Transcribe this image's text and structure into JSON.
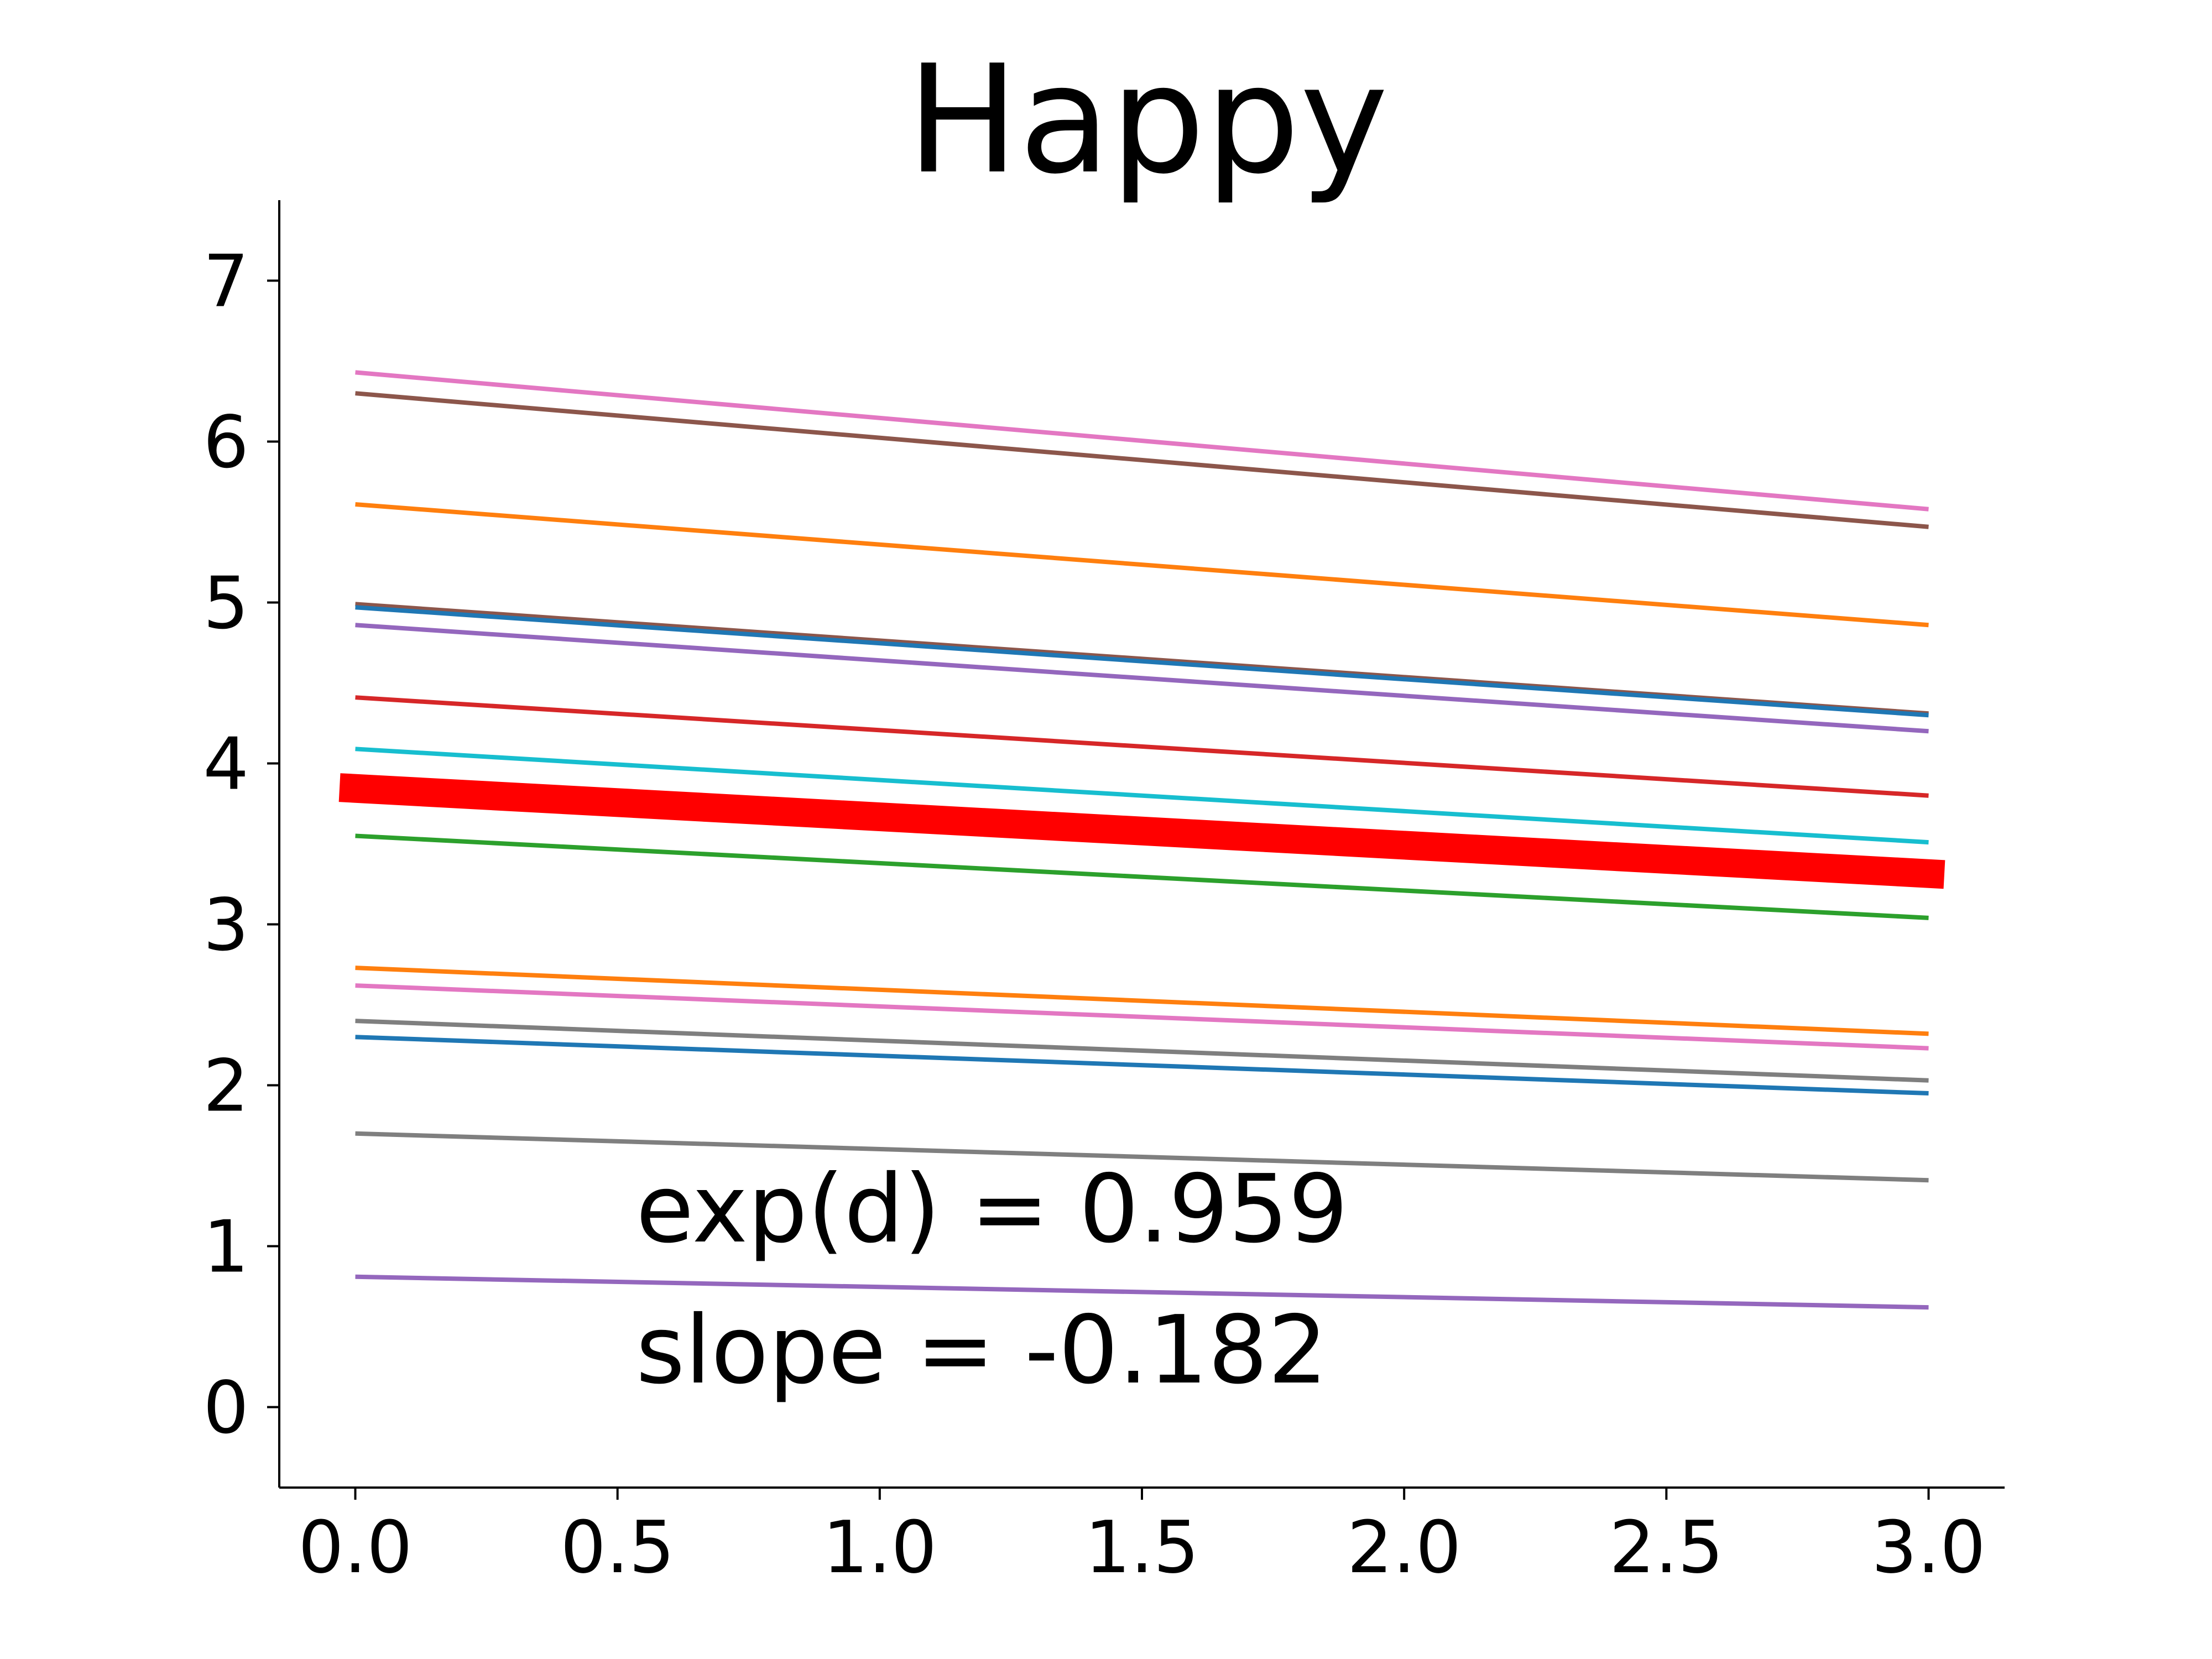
{
  "chart_data": {
    "type": "line",
    "title": "Happy",
    "xlabel": "",
    "ylabel": "",
    "xlim": [
      -0.145,
      3.145
    ],
    "ylim": [
      -0.5,
      7.5
    ],
    "grid": false,
    "legend": "none",
    "x_ticks": [
      "0.0",
      "0.5",
      "1.0",
      "1.5",
      "2.0",
      "2.5",
      "3.0"
    ],
    "y_ticks": [
      "0",
      "1",
      "2",
      "3",
      "4",
      "5",
      "6",
      "7"
    ],
    "x": [
      0,
      3
    ],
    "series": [
      {
        "color": "#e377c2",
        "values": [
          6.43,
          5.58
        ]
      },
      {
        "color": "#8c564b",
        "values": [
          6.3,
          5.47
        ]
      },
      {
        "color": "#ff7f0e",
        "values": [
          5.61,
          4.86
        ]
      },
      {
        "color": "#8c564b",
        "values": [
          4.99,
          4.31
        ]
      },
      {
        "color": "#1f77b4",
        "values": [
          4.97,
          4.3
        ]
      },
      {
        "color": "#9467bd",
        "values": [
          4.86,
          4.2
        ]
      },
      {
        "color": "#d62728",
        "values": [
          4.41,
          3.8
        ]
      },
      {
        "color": "#17becf",
        "values": [
          4.09,
          3.51
        ]
      },
      {
        "color": "#2ca02c",
        "values": [
          3.55,
          3.04
        ]
      },
      {
        "color": "#ff7f0e",
        "values": [
          2.73,
          2.32
        ]
      },
      {
        "color": "#e377c2",
        "values": [
          2.62,
          2.23
        ]
      },
      {
        "color": "#7f7f7f",
        "values": [
          2.4,
          2.03
        ]
      },
      {
        "color": "#1f77b4",
        "values": [
          2.3,
          1.95
        ]
      },
      {
        "color": "#7f7f7f",
        "values": [
          1.7,
          1.41
        ]
      },
      {
        "color": "#9467bd",
        "values": [
          0.81,
          0.62
        ]
      }
    ],
    "mean_line": {
      "color": "#ff0000",
      "x": [
        -0.03,
        3.03
      ],
      "values": [
        3.85,
        3.31
      ]
    },
    "annotations": [
      "exp(d) = 0.959",
      "slope = -0.182"
    ]
  }
}
